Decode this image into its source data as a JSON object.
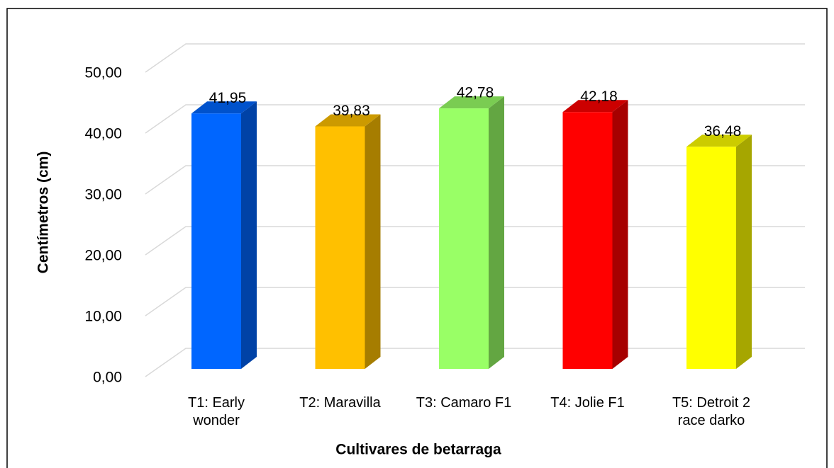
{
  "chart_data": {
    "type": "bar3d",
    "xlabel": "Cultivares de betarraga",
    "ylabel": "Centímetros (cm)",
    "categories": [
      "T1: Early wonder",
      "T2: Maravilla",
      "T3: Camaro F1",
      "T4: Jolie F1",
      "T5: Detroit 2 race darko"
    ],
    "values": [
      41.95,
      39.83,
      42.78,
      42.18,
      36.48
    ],
    "value_labels": [
      "41,95",
      "39,83",
      "42,78",
      "42,18",
      "36,48"
    ],
    "colors": [
      "#0066ff",
      "#ffc000",
      "#99ff66",
      "#ff0000",
      "#ffff00"
    ],
    "ylim": [
      0,
      50
    ],
    "yticks": [
      {
        "value": 0,
        "label": "0,00"
      },
      {
        "value": 10,
        "label": "10,00"
      },
      {
        "value": 20,
        "label": "20,00"
      },
      {
        "value": 30,
        "label": "30,00"
      },
      {
        "value": 40,
        "label": "40,00"
      },
      {
        "value": 50,
        "label": "50,00"
      }
    ],
    "grid": true
  }
}
